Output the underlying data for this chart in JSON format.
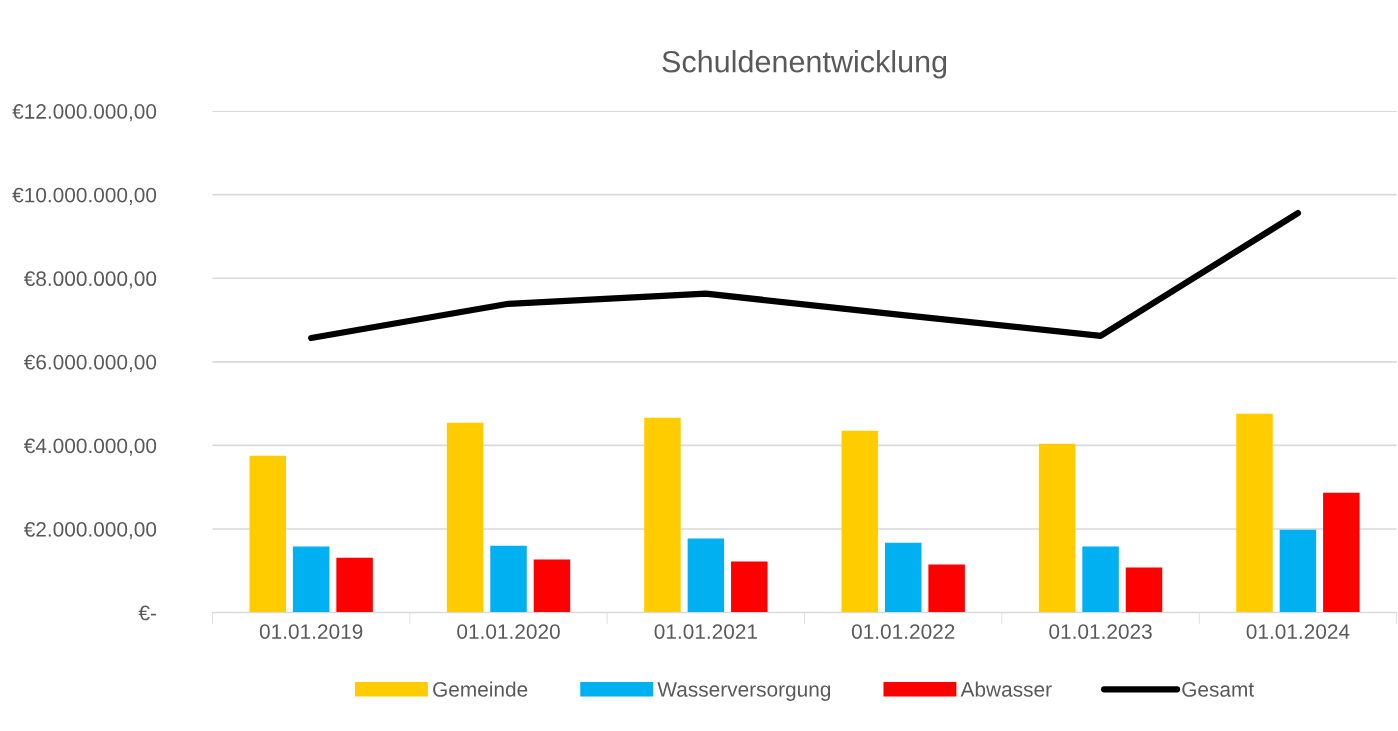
{
  "chart_data": {
    "type": "bar",
    "title": "Schuldenentwicklung",
    "categories": [
      "01.01.2019",
      "01.01.2020",
      "01.01.2021",
      "01.01.2022",
      "01.01.2023",
      "01.01.2024"
    ],
    "series": [
      {
        "name": "Gemeinde",
        "color": "#ffcc00",
        "values": [
          3750000,
          4540000,
          4660000,
          4350000,
          4040000,
          4760000
        ]
      },
      {
        "name": "Wasserversorgung",
        "color": "#00b0f0",
        "values": [
          1580000,
          1600000,
          1770000,
          1670000,
          1580000,
          1980000
        ]
      },
      {
        "name": "Abwasser",
        "color": "#ff0000",
        "values": [
          1310000,
          1270000,
          1220000,
          1150000,
          1080000,
          2870000
        ]
      },
      {
        "name": "Gesamt",
        "type": "line",
        "color": "#000000",
        "values": [
          6570000,
          7390000,
          7630000,
          7120000,
          6620000,
          9560000
        ]
      }
    ],
    "ylim": [
      0,
      12000000
    ],
    "yticks": [
      {
        "value": 0,
        "label": "€-"
      },
      {
        "value": 2000000,
        "label": "€2.000.000,00"
      },
      {
        "value": 4000000,
        "label": "€4.000.000,00"
      },
      {
        "value": 6000000,
        "label": "€6.000.000,00"
      },
      {
        "value": 8000000,
        "label": "€8.000.000,00"
      },
      {
        "value": 10000000,
        "label": "€10.000.000,00"
      },
      {
        "value": 12000000,
        "label": "€12.000.000,00"
      }
    ],
    "grid": "y",
    "legend": "bottom"
  }
}
